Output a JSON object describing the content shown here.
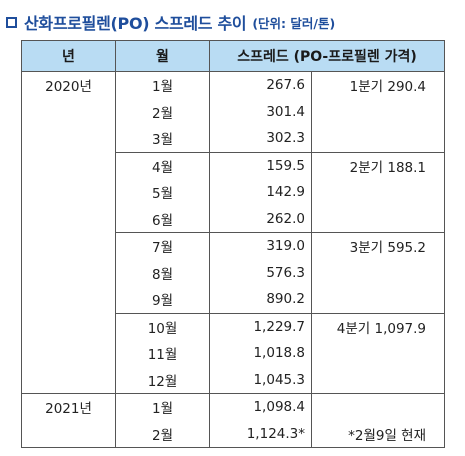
{
  "title": {
    "main": "산화프로필렌(PO) 스프레드 추이",
    "unit": "(단위: 달러/톤)"
  },
  "table": {
    "headers": {
      "year": "년",
      "month": "월",
      "value": "스프레드 (PO-프로필렌 가격)",
      "quarter": ""
    },
    "rows": [
      {
        "year": "2020년",
        "month": "1월",
        "value": "267.6",
        "quarter": "1분기 290.4"
      },
      {
        "year": "",
        "month": "2월",
        "value": "301.4",
        "quarter": ""
      },
      {
        "year": "",
        "month": "3월",
        "value": "302.3",
        "quarter": ""
      },
      {
        "year": "",
        "month": "4월",
        "value": "159.5",
        "quarter": "2분기 188.1"
      },
      {
        "year": "",
        "month": "5월",
        "value": "142.9",
        "quarter": ""
      },
      {
        "year": "",
        "month": "6월",
        "value": "262.0",
        "quarter": ""
      },
      {
        "year": "",
        "month": "7월",
        "value": "319.0",
        "quarter": "3분기 595.2"
      },
      {
        "year": "",
        "month": "8월",
        "value": "576.3",
        "quarter": ""
      },
      {
        "year": "",
        "month": "9월",
        "value": "890.2",
        "quarter": ""
      },
      {
        "year": "",
        "month": "10월",
        "value": "1,229.7",
        "quarter": "4분기 1,097.9"
      },
      {
        "year": "",
        "month": "11월",
        "value": "1,018.8",
        "quarter": ""
      },
      {
        "year": "",
        "month": "12월",
        "value": "1,045.3",
        "quarter": ""
      },
      {
        "year": "2021년",
        "month": "1월",
        "value": "1,098.4",
        "quarter": ""
      },
      {
        "year": "",
        "month": "2월",
        "value": "1,124.3*",
        "quarter": "*2월9일 현재"
      }
    ]
  }
}
